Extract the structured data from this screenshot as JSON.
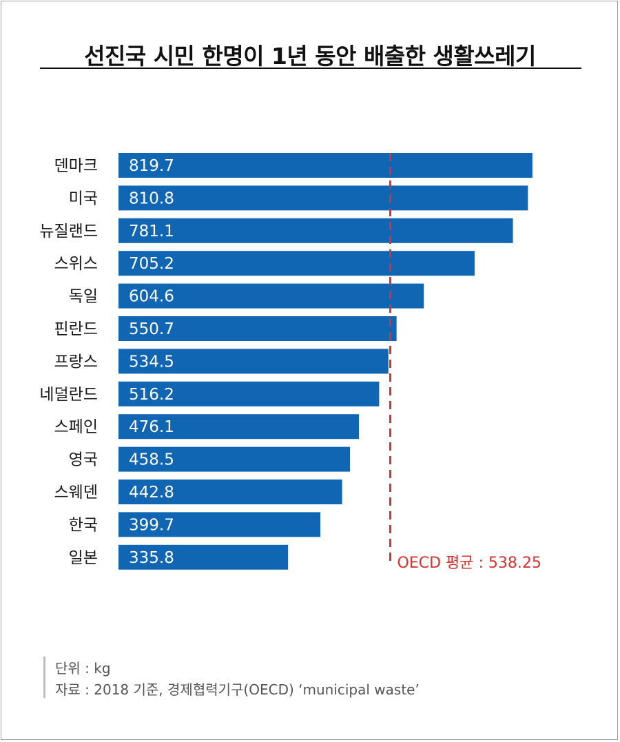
{
  "title": "선진국 시민 한명이 1년 동안 배출한 생활쓰레기",
  "chart_data": {
    "type": "bar",
    "orientation": "horizontal",
    "unit": "kg",
    "categories": [
      "덴마크",
      "미국",
      "뉴질랜드",
      "스위스",
      "독일",
      "핀란드",
      "프랑스",
      "네덜란드",
      "스페인",
      "영국",
      "스웨덴",
      "한국",
      "일본"
    ],
    "values": [
      819.7,
      810.8,
      781.1,
      705.2,
      604.6,
      550.7,
      534.5,
      516.2,
      476.1,
      458.5,
      442.8,
      399.7,
      335.8
    ],
    "value_labels": [
      "819.7",
      "810.8",
      "781.1",
      "705.2",
      "604.6",
      "550.7",
      "534.5",
      "516.2",
      "476.1",
      "458.5",
      "442.8",
      "399.7",
      "335.8"
    ],
    "reference_line": {
      "value": 538.25,
      "label": "OECD 평균 : 538.25",
      "style": "dashed"
    },
    "bar_color": "#1166b3",
    "reference_color": "#d9322e",
    "xlim": [
      0,
      830
    ],
    "grid": false
  },
  "footnote": {
    "unit": "단위 : kg",
    "source": "자료 : 2018 기준, 경제협력기구(OECD) ‘municipal waste’"
  }
}
